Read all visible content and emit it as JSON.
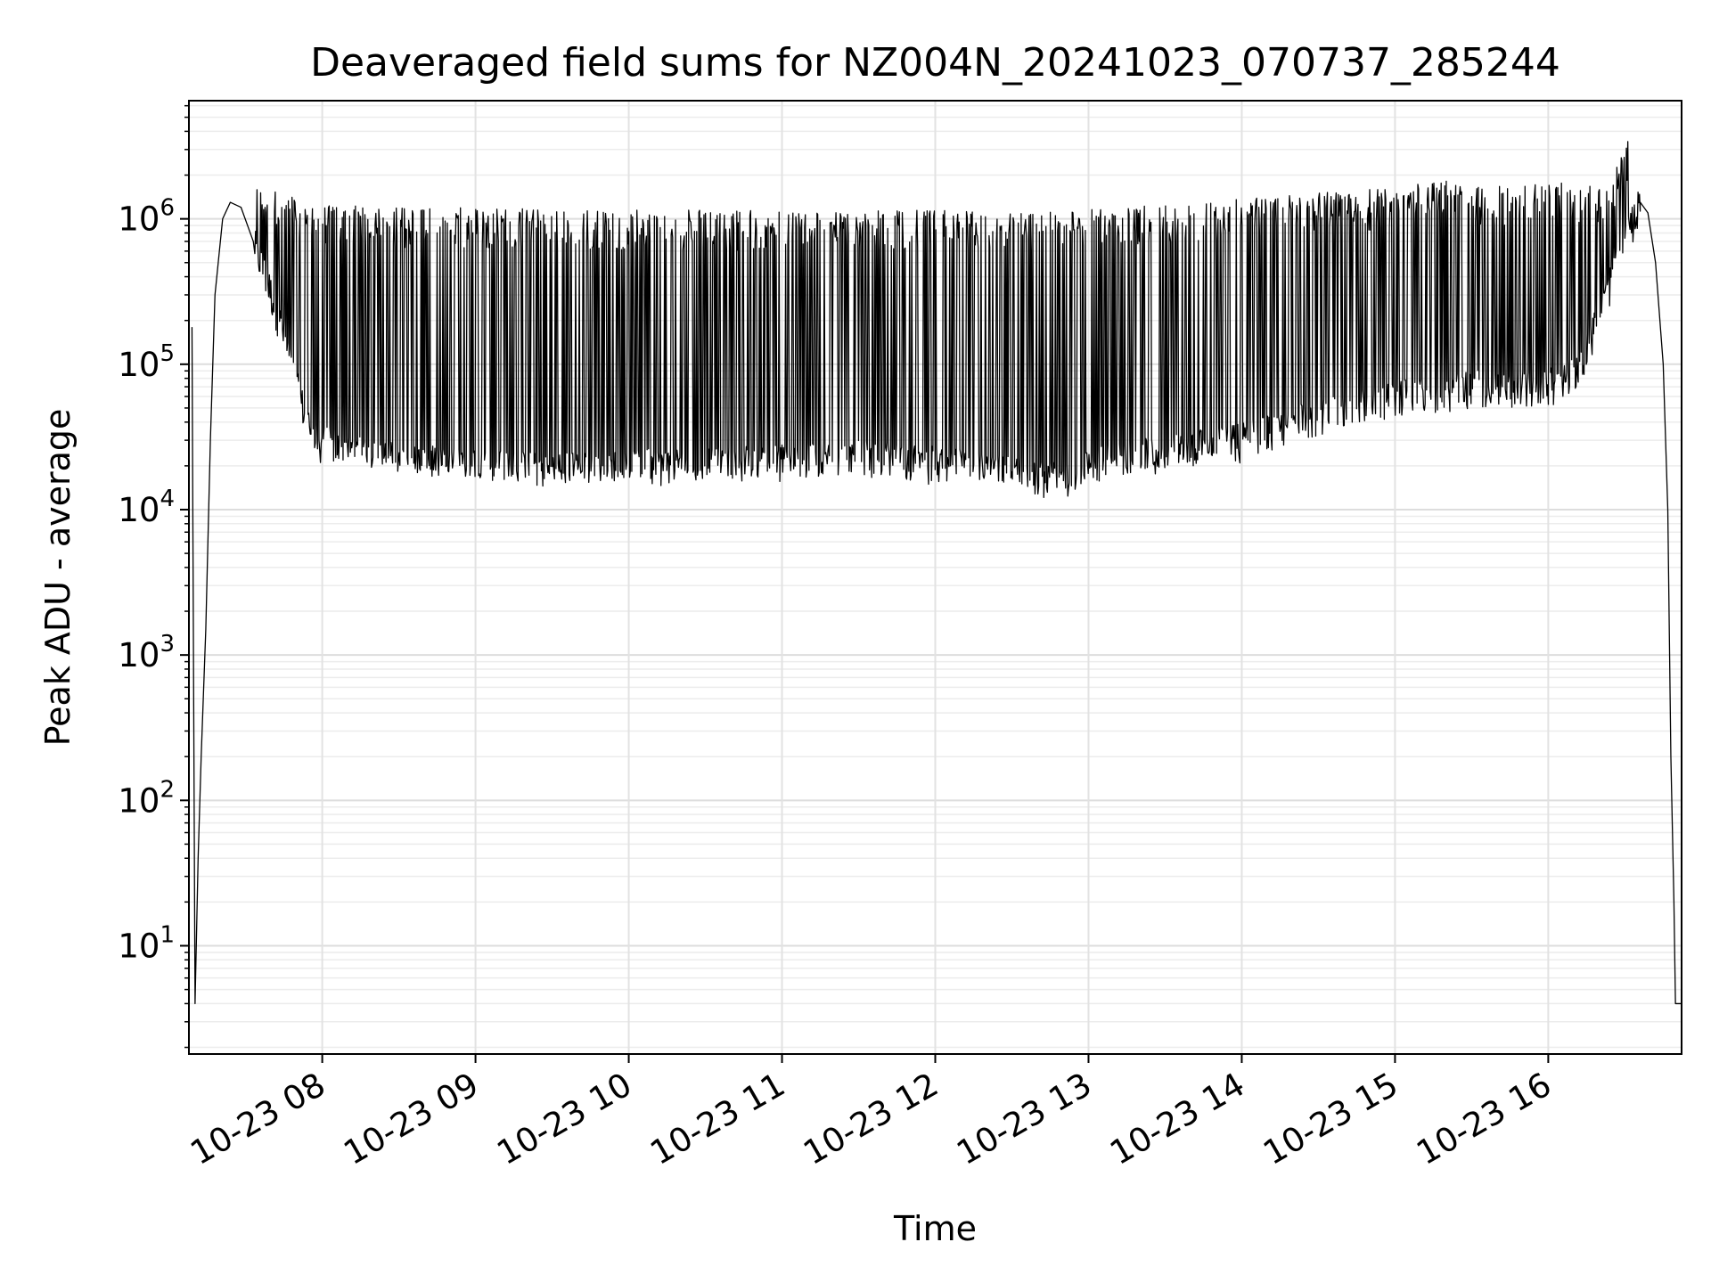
{
  "chart_data": {
    "type": "line",
    "title": "Deaveraged field sums for NZ004N_20241023_070737_285244",
    "xlabel": "Time",
    "ylabel": "Peak ADU - average",
    "yscale": "log",
    "ylim": [
      1.8,
      6500000
    ],
    "xlim_hours": [
      7.13,
      16.87
    ],
    "grid": true,
    "x_tick_labels": [
      "10-23 08",
      "10-23 09",
      "10-23 10",
      "10-23 11",
      "10-23 12",
      "10-23 13",
      "10-23 14",
      "10-23 15",
      "10-23 16"
    ],
    "x_tick_hours": [
      8,
      9,
      10,
      11,
      12,
      13,
      14,
      15,
      16
    ],
    "y_ticks": [
      {
        "base": "10",
        "exp": "1",
        "value": 10
      },
      {
        "base": "10",
        "exp": "2",
        "value": 100
      },
      {
        "base": "10",
        "exp": "3",
        "value": 1000
      },
      {
        "base": "10",
        "exp": "4",
        "value": 10000
      },
      {
        "base": "10",
        "exp": "5",
        "value": 100000
      },
      {
        "base": "10",
        "exp": "6",
        "value": 1000000
      }
    ],
    "line_color": "#000000",
    "series": [
      {
        "style": "dense oscillating trace",
        "points": [
          [
            7.15,
            180000
          ],
          [
            7.17,
            4
          ],
          [
            7.19,
            40
          ],
          [
            7.21,
            200
          ],
          [
            7.24,
            1500
          ],
          [
            7.27,
            30000
          ],
          [
            7.3,
            300000
          ],
          [
            7.35,
            1000000
          ],
          [
            7.4,
            1300000
          ],
          [
            7.47,
            1200000
          ],
          [
            7.55,
            700000
          ],
          [
            7.65,
            350000
          ],
          [
            7.75,
            160000
          ],
          [
            7.85,
            60000
          ],
          [
            7.95,
            30000
          ],
          [
            8.5,
            22000
          ],
          [
            9.0,
            20000
          ],
          [
            9.5,
            19000
          ],
          [
            10.0,
            20000
          ],
          [
            10.5,
            21000
          ],
          [
            11.0,
            22000
          ],
          [
            11.5,
            23000
          ],
          [
            12.0,
            21000
          ],
          [
            12.5,
            18000
          ],
          [
            12.8,
            16000
          ],
          [
            13.0,
            21000
          ],
          [
            13.5,
            25000
          ],
          [
            14.0,
            30000
          ],
          [
            14.5,
            45000
          ],
          [
            15.0,
            60000
          ],
          [
            15.5,
            70000
          ],
          [
            16.0,
            72000
          ],
          [
            16.2,
            90000
          ],
          [
            16.35,
            250000
          ],
          [
            16.5,
            700000
          ],
          [
            16.6,
            1300000
          ],
          [
            16.65,
            1100000
          ],
          [
            16.7,
            500000
          ],
          [
            16.75,
            100000
          ],
          [
            16.78,
            10000
          ],
          [
            16.8,
            200
          ],
          [
            16.82,
            20
          ],
          [
            16.83,
            4
          ],
          [
            16.87,
            4
          ]
        ],
        "upper_envelope": [
          [
            7.6,
            1600000
          ],
          [
            8.0,
            1200000
          ],
          [
            8.5,
            1150000
          ],
          [
            9.0,
            1150000
          ],
          [
            9.5,
            1100000
          ],
          [
            10.0,
            1100000
          ],
          [
            10.5,
            1100000
          ],
          [
            11.0,
            1100000
          ],
          [
            11.5,
            1100000
          ],
          [
            12.0,
            1100000
          ],
          [
            12.5,
            1050000
          ],
          [
            13.0,
            1100000
          ],
          [
            13.5,
            1200000
          ],
          [
            14.0,
            1300000
          ],
          [
            14.5,
            1450000
          ],
          [
            15.0,
            1550000
          ],
          [
            15.3,
            1800000
          ],
          [
            15.5,
            1600000
          ],
          [
            16.0,
            1700000
          ],
          [
            16.4,
            1600000
          ],
          [
            16.52,
            3400000
          ]
        ],
        "lower_envelope": [
          [
            7.9,
            30000
          ],
          [
            8.0,
            20000
          ],
          [
            8.5,
            18000
          ],
          [
            9.0,
            16000
          ],
          [
            9.5,
            15000
          ],
          [
            10.0,
            16000
          ],
          [
            10.5,
            15000
          ],
          [
            11.0,
            15000
          ],
          [
            11.5,
            16000
          ],
          [
            12.0,
            15000
          ],
          [
            12.5,
            14000
          ],
          [
            12.8,
            12500
          ],
          [
            13.0,
            15000
          ],
          [
            13.5,
            16000
          ],
          [
            14.0,
            17000
          ],
          [
            14.5,
            25000
          ],
          [
            15.0,
            40000
          ],
          [
            15.5,
            45000
          ],
          [
            16.0,
            50000
          ],
          [
            16.2,
            55000
          ]
        ]
      }
    ]
  }
}
